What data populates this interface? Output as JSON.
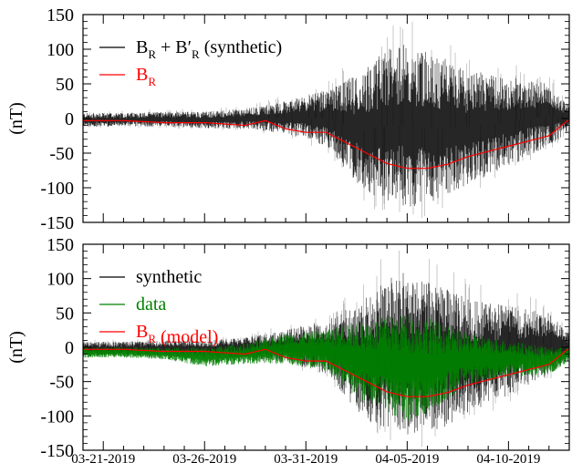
{
  "chart_data": [
    {
      "type": "line",
      "panel": "top",
      "ylabel": "(nT)",
      "xlabel": "",
      "ylim": [
        -150,
        150
      ],
      "yticks": [
        150,
        100,
        50,
        0,
        -50,
        -100,
        -150
      ],
      "ytick_labels": [
        "150",
        "100",
        "50",
        "0",
        "-50",
        "-100",
        "-150"
      ],
      "xlim": [
        "2019-03-20",
        "2019-04-13"
      ],
      "x_tick_labels_shown": false,
      "legend": [
        {
          "main": "B",
          "sub": "R",
          "mid": " + B′",
          "sub2": "R",
          "tail": "  (synthetic)",
          "color": "#000000"
        },
        {
          "main": "B",
          "sub": "R",
          "mid": "",
          "sub2": "",
          "tail": "",
          "color": "#ff0000"
        }
      ],
      "legend_position": "top-left",
      "series": [
        {
          "name": "B_R + B'_R (synthetic)",
          "style": "noisy envelope",
          "color": "#000000",
          "x": [
            "2019-03-20",
            "2019-03-22",
            "2019-03-24",
            "2019-03-26",
            "2019-03-28",
            "2019-03-30",
            "2019-04-01",
            "2019-04-02",
            "2019-04-03",
            "2019-04-04",
            "2019-04-05",
            "2019-04-06",
            "2019-04-07",
            "2019-04-08",
            "2019-04-10",
            "2019-04-12",
            "2019-04-13"
          ],
          "upper": [
            8,
            8,
            10,
            10,
            14,
            25,
            40,
            55,
            75,
            100,
            110,
            95,
            85,
            70,
            60,
            50,
            20
          ],
          "lower": [
            -12,
            -12,
            -12,
            -15,
            -15,
            -22,
            -40,
            -75,
            -110,
            -120,
            -130,
            -125,
            -115,
            -95,
            -70,
            -40,
            -20
          ]
        },
        {
          "name": "B_R",
          "color": "#ff0000",
          "x": [
            "2019-03-20",
            "2019-03-22",
            "2019-03-24",
            "2019-03-26",
            "2019-03-27",
            "2019-03-28",
            "2019-03-29",
            "2019-03-30",
            "2019-03-31",
            "2019-04-01",
            "2019-04-02",
            "2019-04-03",
            "2019-04-04",
            "2019-04-05",
            "2019-04-06",
            "2019-04-07",
            "2019-04-08",
            "2019-04-10",
            "2019-04-12",
            "2019-04-13"
          ],
          "values": [
            -3,
            -3,
            -6,
            -6,
            -8,
            -10,
            -3,
            -15,
            -20,
            -20,
            -35,
            -50,
            -65,
            -72,
            -72,
            -66,
            -55,
            -40,
            -25,
            -1
          ]
        }
      ]
    },
    {
      "type": "line",
      "panel": "bottom",
      "ylabel": "(nT)",
      "xlabel": "",
      "ylim": [
        -150,
        150
      ],
      "yticks": [
        150,
        100,
        50,
        0,
        -50,
        -100,
        -150
      ],
      "ytick_labels": [
        "150",
        "100",
        "50",
        "0",
        "-50",
        "-100",
        "-150"
      ],
      "xlim": [
        "2019-03-20",
        "2019-04-13"
      ],
      "x_ticks": [
        "2019-03-21",
        "2019-03-26",
        "2019-03-31",
        "2019-04-05",
        "2019-04-10"
      ],
      "x_tick_labels": [
        "03-21-2019",
        "03-26-2019",
        "03-31-2019",
        "04-05-2019",
        "04-10-2019"
      ],
      "legend": [
        {
          "main": "synthetic",
          "sub": "",
          "tail": "",
          "color": "#000000"
        },
        {
          "main": "data",
          "sub": "",
          "tail": "",
          "color": "#008000"
        },
        {
          "main": "B",
          "sub": "R",
          "tail": " (model)",
          "color": "#ff0000"
        }
      ],
      "legend_position": "top-left",
      "series": [
        {
          "name": "synthetic",
          "style": "noisy envelope",
          "color": "#000000",
          "x": [
            "2019-03-20",
            "2019-03-22",
            "2019-03-24",
            "2019-03-26",
            "2019-03-28",
            "2019-03-30",
            "2019-04-01",
            "2019-04-02",
            "2019-04-03",
            "2019-04-04",
            "2019-04-05",
            "2019-04-06",
            "2019-04-07",
            "2019-04-08",
            "2019-04-10",
            "2019-04-12",
            "2019-04-13"
          ],
          "upper": [
            8,
            8,
            10,
            10,
            14,
            25,
            40,
            55,
            75,
            100,
            110,
            95,
            85,
            70,
            60,
            50,
            20
          ],
          "lower": [
            -12,
            -12,
            -12,
            -15,
            -15,
            -22,
            -40,
            -75,
            -110,
            -120,
            -130,
            -125,
            -115,
            -95,
            -70,
            -40,
            -20
          ]
        },
        {
          "name": "data",
          "style": "noisy envelope",
          "color": "#008000",
          "x": [
            "2019-03-20",
            "2019-03-22",
            "2019-03-24",
            "2019-03-26",
            "2019-03-28",
            "2019-03-30",
            "2019-04-01",
            "2019-04-02",
            "2019-04-03",
            "2019-04-04",
            "2019-04-05",
            "2019-04-06",
            "2019-04-07",
            "2019-04-08",
            "2019-04-10",
            "2019-04-12",
            "2019-04-13"
          ],
          "upper": [
            0,
            0,
            0,
            0,
            5,
            20,
            25,
            35,
            40,
            45,
            50,
            45,
            30,
            20,
            10,
            0,
            0
          ],
          "lower": [
            -15,
            -15,
            -18,
            -28,
            -25,
            -25,
            -35,
            -60,
            -85,
            -95,
            -110,
            -100,
            -75,
            -55,
            -45,
            -40,
            -20
          ]
        },
        {
          "name": "B_R (model)",
          "color": "#ff0000",
          "x": [
            "2019-03-20",
            "2019-03-22",
            "2019-03-24",
            "2019-03-26",
            "2019-03-27",
            "2019-03-28",
            "2019-03-29",
            "2019-03-30",
            "2019-03-31",
            "2019-04-01",
            "2019-04-02",
            "2019-04-03",
            "2019-04-04",
            "2019-04-05",
            "2019-04-06",
            "2019-04-07",
            "2019-04-08",
            "2019-04-10",
            "2019-04-12",
            "2019-04-13"
          ],
          "values": [
            -3,
            -3,
            -6,
            -6,
            -8,
            -10,
            -3,
            -15,
            -20,
            -20,
            -35,
            -50,
            -65,
            -72,
            -72,
            -66,
            -55,
            -40,
            -25,
            -1
          ]
        }
      ]
    }
  ]
}
